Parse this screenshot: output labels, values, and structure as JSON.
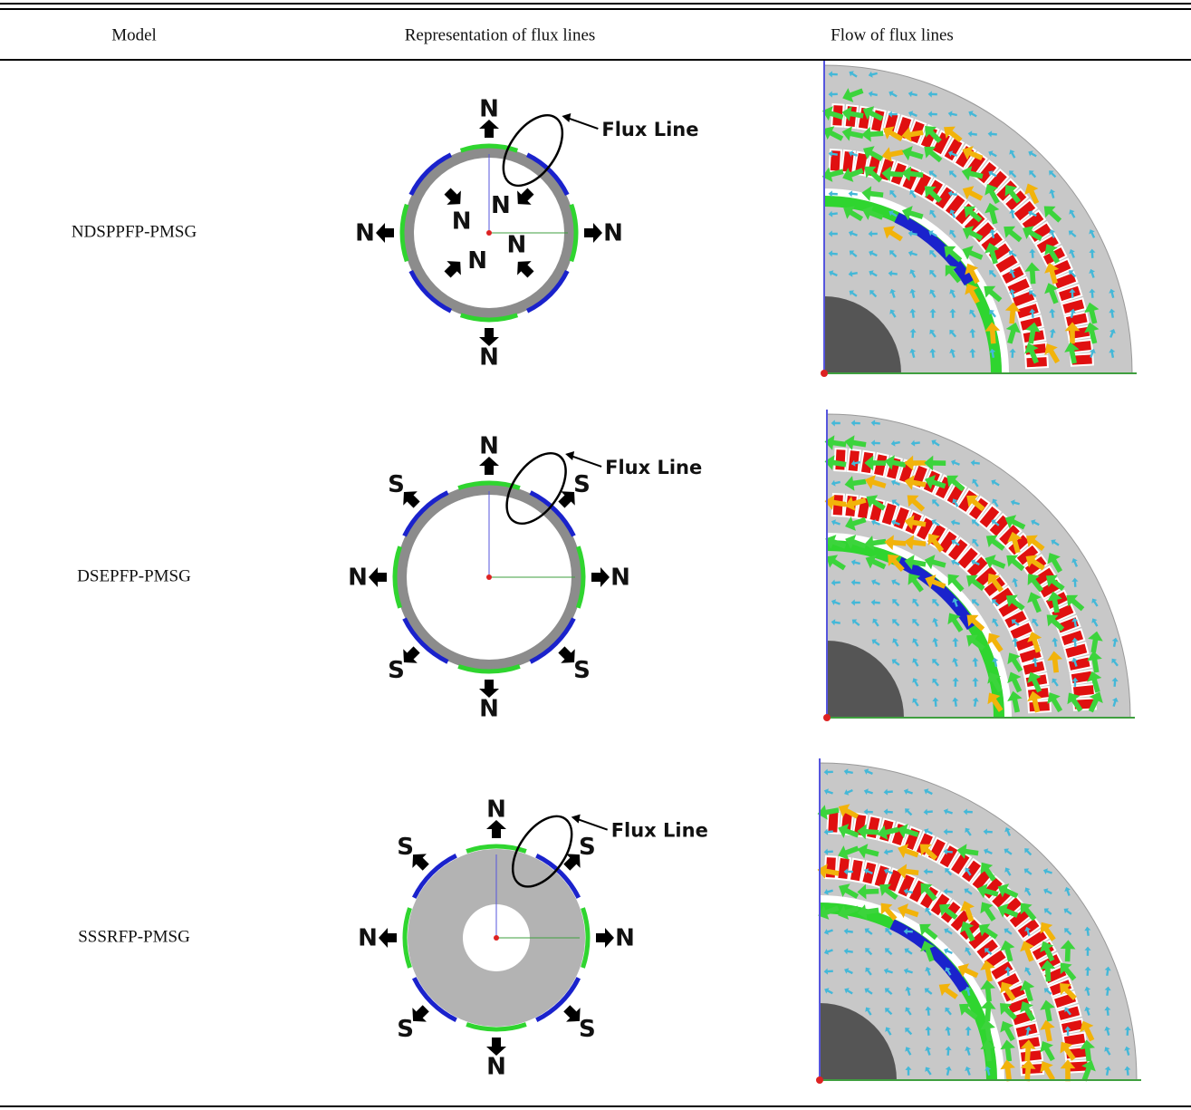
{
  "table": {
    "headers": [
      "Model",
      "Representation of flux lines",
      "Flow of flux lines"
    ],
    "rows": [
      {
        "model": "NDSPPFP-PMSG",
        "diagram": {
          "flux_label": "Flux Line",
          "poles": [
            "N",
            "N",
            "N",
            "N",
            "N",
            "N",
            "N",
            "N"
          ]
        }
      },
      {
        "model": "DSEPFP-PMSG",
        "diagram": {
          "flux_label": "Flux Line",
          "poles": [
            "N",
            "S",
            "N",
            "S",
            "N",
            "S",
            "N",
            "S"
          ]
        }
      },
      {
        "model": "SSSRFP-PMSG",
        "diagram": {
          "flux_label": "Flux Line",
          "poles": [
            "N",
            "S",
            "N",
            "S",
            "N",
            "S",
            "N",
            "S"
          ]
        }
      }
    ]
  }
}
